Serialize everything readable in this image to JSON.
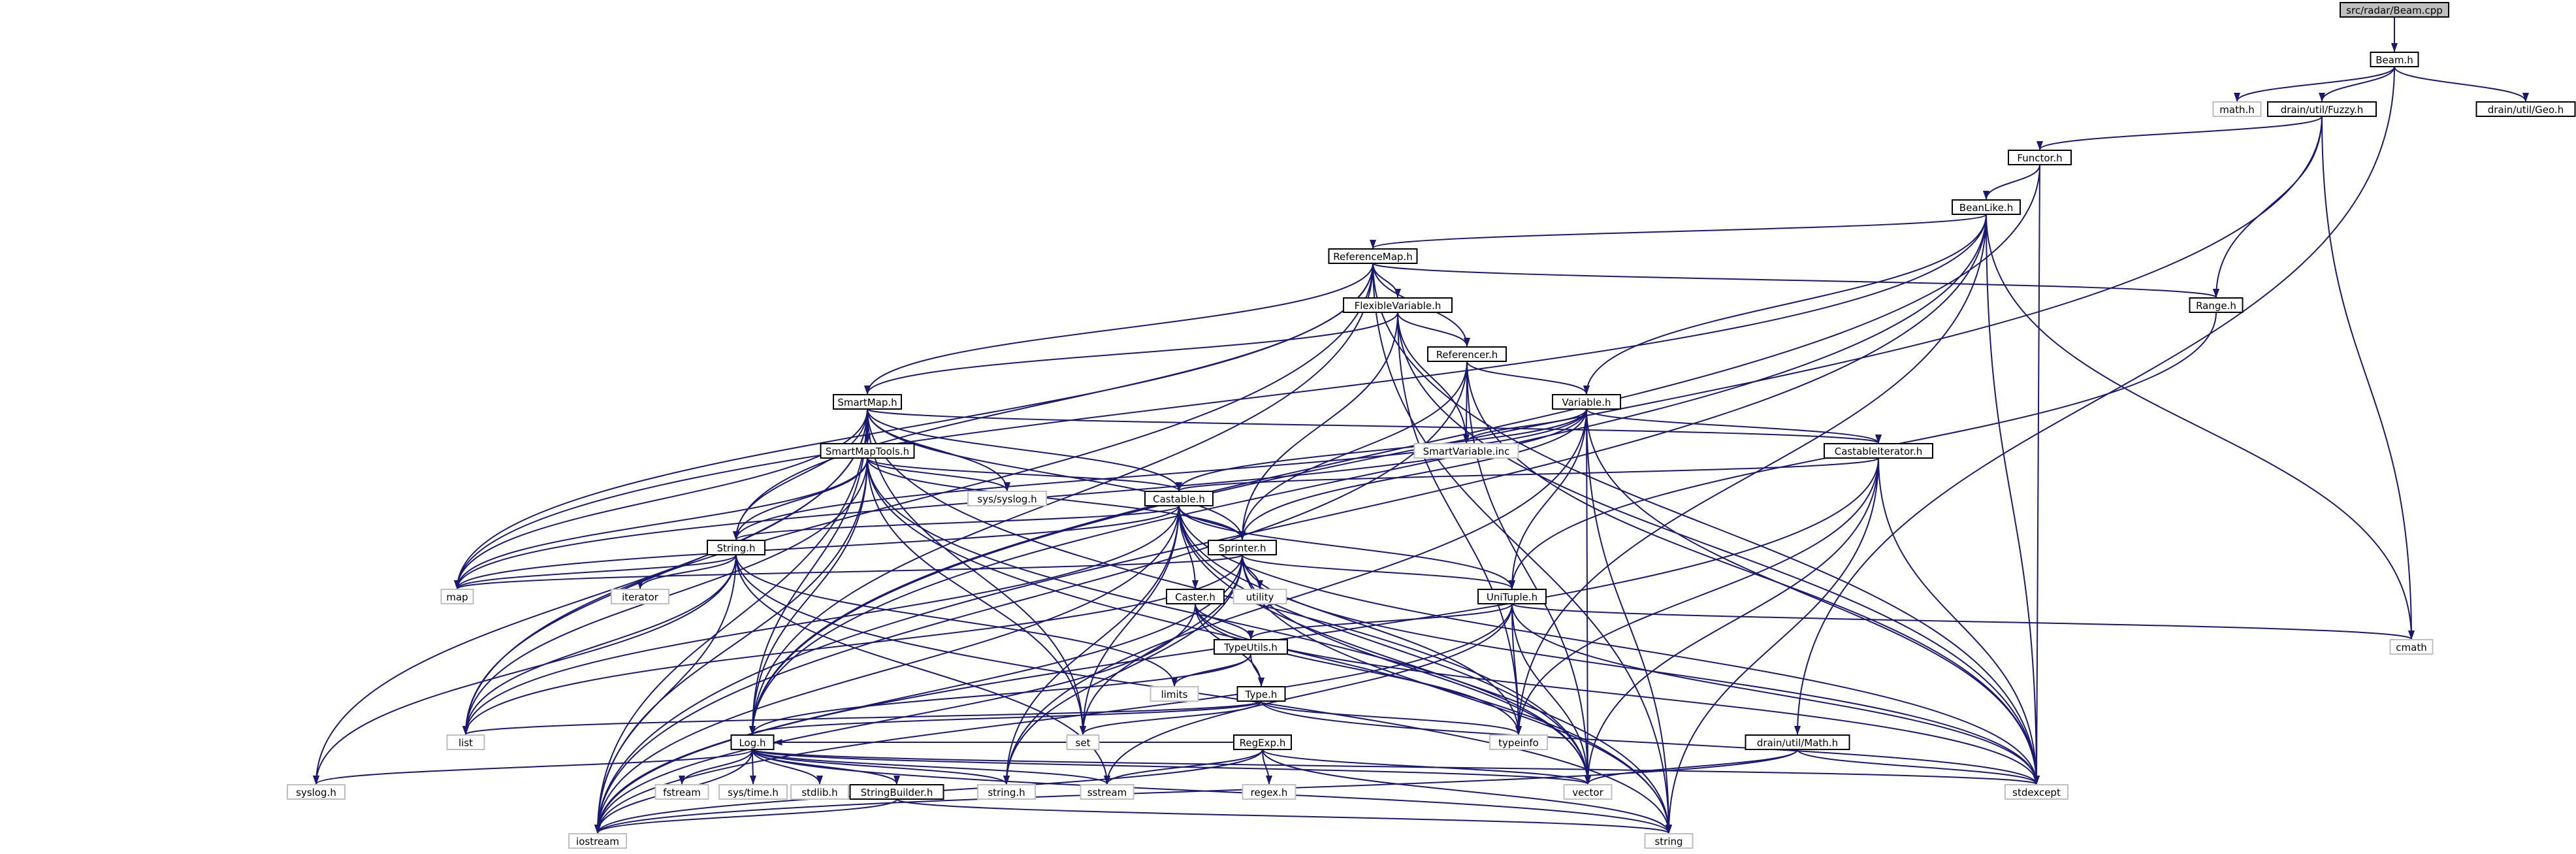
{
  "diagram": {
    "title": "src/radar/Beam.cpp",
    "colors": {
      "edge": "#191970",
      "node_border": "#000000",
      "root_fill": "#bfbfbf",
      "external_border": "#bfbfbf"
    },
    "nodes": [
      {
        "id": "beam_cpp",
        "label": "src/radar/Beam.cpp",
        "kind": "root"
      },
      {
        "id": "beam_h",
        "label": "Beam.h",
        "kind": "header"
      },
      {
        "id": "math_h",
        "label": "math.h",
        "kind": "external"
      },
      {
        "id": "fuzzy_h",
        "label": "drain/util/Fuzzy.h",
        "kind": "header"
      },
      {
        "id": "geo_h",
        "label": "drain/util/Geo.h",
        "kind": "header"
      },
      {
        "id": "functor_h",
        "label": "Functor.h",
        "kind": "header"
      },
      {
        "id": "beanlike_h",
        "label": "BeanLike.h",
        "kind": "header"
      },
      {
        "id": "refmap_h",
        "label": "ReferenceMap.h",
        "kind": "header"
      },
      {
        "id": "range_h",
        "label": "Range.h",
        "kind": "header"
      },
      {
        "id": "flexvar_h",
        "label": "FlexibleVariable.h",
        "kind": "header"
      },
      {
        "id": "referencer_h",
        "label": "Referencer.h",
        "kind": "header"
      },
      {
        "id": "smartmap_h",
        "label": "SmartMap.h",
        "kind": "header"
      },
      {
        "id": "variable_h",
        "label": "Variable.h",
        "kind": "header"
      },
      {
        "id": "smartvar_inc",
        "label": "SmartVariable.inc",
        "kind": "external"
      },
      {
        "id": "castit_h",
        "label": "CastableIterator.h",
        "kind": "header"
      },
      {
        "id": "smaptools_h",
        "label": "SmartMapTools.h",
        "kind": "header"
      },
      {
        "id": "syslog_sys",
        "label": "sys/syslog.h",
        "kind": "external"
      },
      {
        "id": "castable_h",
        "label": "Castable.h",
        "kind": "header"
      },
      {
        "id": "string_h",
        "label": "String.h",
        "kind": "header"
      },
      {
        "id": "sprinter_h",
        "label": "Sprinter.h",
        "kind": "header"
      },
      {
        "id": "map",
        "label": "map",
        "kind": "external"
      },
      {
        "id": "iterator",
        "label": "iterator",
        "kind": "external"
      },
      {
        "id": "utility",
        "label": "utility",
        "kind": "external"
      },
      {
        "id": "caster_h",
        "label": "Caster.h",
        "kind": "header"
      },
      {
        "id": "unituple_h",
        "label": "UniTuple.h",
        "kind": "header"
      },
      {
        "id": "cmath",
        "label": "cmath",
        "kind": "external"
      },
      {
        "id": "typeutils_h",
        "label": "TypeUtils.h",
        "kind": "header"
      },
      {
        "id": "limits",
        "label": "limits",
        "kind": "external"
      },
      {
        "id": "type_h",
        "label": "Type.h",
        "kind": "header"
      },
      {
        "id": "list",
        "label": "list",
        "kind": "external"
      },
      {
        "id": "set",
        "label": "set",
        "kind": "external"
      },
      {
        "id": "typeinfo",
        "label": "typeinfo",
        "kind": "external"
      },
      {
        "id": "log_h",
        "label": "Log.h",
        "kind": "header"
      },
      {
        "id": "regexp_h",
        "label": "RegExp.h",
        "kind": "header"
      },
      {
        "id": "dmath_h",
        "label": "drain/util/Math.h",
        "kind": "header"
      },
      {
        "id": "syslog_h",
        "label": "syslog.h",
        "kind": "external"
      },
      {
        "id": "fstream",
        "label": "fstream",
        "kind": "external"
      },
      {
        "id": "systime_h",
        "label": "sys/time.h",
        "kind": "external"
      },
      {
        "id": "stdlib_h",
        "label": "stdlib.h",
        "kind": "external"
      },
      {
        "id": "strbuilder_h",
        "label": "StringBuilder.h",
        "kind": "header"
      },
      {
        "id": "cstring_h",
        "label": "string.h",
        "kind": "external"
      },
      {
        "id": "sstream",
        "label": "sstream",
        "kind": "external"
      },
      {
        "id": "regex_h",
        "label": "regex.h",
        "kind": "external"
      },
      {
        "id": "vector",
        "label": "vector",
        "kind": "external"
      },
      {
        "id": "stdexcept",
        "label": "stdexcept",
        "kind": "external"
      },
      {
        "id": "iostream",
        "label": "iostream",
        "kind": "external"
      },
      {
        "id": "string",
        "label": "string",
        "kind": "external"
      }
    ],
    "edges": [
      [
        "beam_cpp",
        "beam_h"
      ],
      [
        "beam_h",
        "math_h"
      ],
      [
        "beam_h",
        "fuzzy_h"
      ],
      [
        "beam_h",
        "geo_h"
      ],
      [
        "beam_h",
        "dmath_h"
      ],
      [
        "fuzzy_h",
        "functor_h"
      ],
      [
        "fuzzy_h",
        "range_h"
      ],
      [
        "fuzzy_h",
        "cmath"
      ],
      [
        "fuzzy_h",
        "log_h"
      ],
      [
        "functor_h",
        "beanlike_h"
      ],
      [
        "functor_h",
        "stdexcept"
      ],
      [
        "functor_h",
        "log_h"
      ],
      [
        "beanlike_h",
        "refmap_h"
      ],
      [
        "beanlike_h",
        "variable_h"
      ],
      [
        "beanlike_h",
        "cmath"
      ],
      [
        "beanlike_h",
        "stdexcept"
      ],
      [
        "beanlike_h",
        "iostream"
      ],
      [
        "beanlike_h",
        "log_h"
      ],
      [
        "beanlike_h",
        "map"
      ],
      [
        "beanlike_h",
        "typeinfo"
      ],
      [
        "refmap_h",
        "flexvar_h"
      ],
      [
        "refmap_h",
        "referencer_h"
      ],
      [
        "refmap_h",
        "range_h"
      ],
      [
        "refmap_h",
        "smartmap_h"
      ],
      [
        "refmap_h",
        "string_h"
      ],
      [
        "refmap_h",
        "log_h"
      ],
      [
        "refmap_h",
        "map"
      ],
      [
        "refmap_h",
        "list"
      ],
      [
        "refmap_h",
        "stdexcept"
      ],
      [
        "refmap_h",
        "string"
      ],
      [
        "range_h",
        "unituple_h"
      ],
      [
        "flexvar_h",
        "referencer_h"
      ],
      [
        "flexvar_h",
        "smartvar_inc"
      ],
      [
        "flexvar_h",
        "smartmap_h"
      ],
      [
        "flexvar_h",
        "sprinter_h"
      ],
      [
        "flexvar_h",
        "typeinfo"
      ],
      [
        "flexvar_h",
        "stdexcept"
      ],
      [
        "referencer_h",
        "variable_h"
      ],
      [
        "referencer_h",
        "smartvar_inc"
      ],
      [
        "referencer_h",
        "sprinter_h"
      ],
      [
        "referencer_h",
        "stdexcept"
      ],
      [
        "referencer_h",
        "vector"
      ],
      [
        "referencer_h",
        "iostream"
      ],
      [
        "smartmap_h",
        "smaptools_h"
      ],
      [
        "smartmap_h",
        "castable_h"
      ],
      [
        "smartmap_h",
        "string_h"
      ],
      [
        "smartmap_h",
        "sprinter_h"
      ],
      [
        "smartmap_h",
        "syslog_sys"
      ],
      [
        "smartmap_h",
        "syslog_h"
      ],
      [
        "smartmap_h",
        "map"
      ],
      [
        "smartmap_h",
        "set"
      ],
      [
        "smartmap_h",
        "list"
      ],
      [
        "smartmap_h",
        "iostream"
      ],
      [
        "smartmap_h",
        "log_h"
      ],
      [
        "smartmap_h",
        "vector"
      ],
      [
        "smartmap_h",
        "castit_h"
      ],
      [
        "variable_h",
        "castable_h"
      ],
      [
        "variable_h",
        "castit_h"
      ],
      [
        "variable_h",
        "smartvar_inc"
      ],
      [
        "variable_h",
        "string_h"
      ],
      [
        "variable_h",
        "sprinter_h"
      ],
      [
        "variable_h",
        "unituple_h"
      ],
      [
        "variable_h",
        "map"
      ],
      [
        "variable_h",
        "vector"
      ],
      [
        "variable_h",
        "stdexcept"
      ],
      [
        "variable_h",
        "string"
      ],
      [
        "variable_h",
        "cstring_h"
      ],
      [
        "castit_h",
        "castable_h"
      ],
      [
        "castit_h",
        "typeinfo"
      ],
      [
        "castit_h",
        "stdexcept"
      ],
      [
        "castit_h",
        "vector"
      ],
      [
        "castit_h",
        "iostream"
      ],
      [
        "castit_h",
        "string"
      ],
      [
        "smaptools_h",
        "castable_h"
      ],
      [
        "smaptools_h",
        "string_h"
      ],
      [
        "smaptools_h",
        "sprinter_h"
      ],
      [
        "smaptools_h",
        "syslog_sys"
      ],
      [
        "smaptools_h",
        "map"
      ],
      [
        "smaptools_h",
        "set"
      ],
      [
        "smaptools_h",
        "list"
      ],
      [
        "smaptools_h",
        "log_h"
      ],
      [
        "smaptools_h",
        "iostream"
      ],
      [
        "smaptools_h",
        "vector"
      ],
      [
        "smaptools_h",
        "string"
      ],
      [
        "castable_h",
        "caster_h"
      ],
      [
        "castable_h",
        "string_h"
      ],
      [
        "castable_h",
        "sprinter_h"
      ],
      [
        "castable_h",
        "unituple_h"
      ],
      [
        "castable_h",
        "map"
      ],
      [
        "castable_h",
        "set"
      ],
      [
        "castable_h",
        "list"
      ],
      [
        "castable_h",
        "typeinfo"
      ],
      [
        "castable_h",
        "iostream"
      ],
      [
        "castable_h",
        "vector"
      ],
      [
        "castable_h",
        "stdexcept"
      ],
      [
        "castable_h",
        "string"
      ],
      [
        "castable_h",
        "cstring_h"
      ],
      [
        "string_h",
        "map"
      ],
      [
        "string_h",
        "iterator"
      ],
      [
        "string_h",
        "limits"
      ],
      [
        "string_h",
        "list"
      ],
      [
        "string_h",
        "syslog_h"
      ],
      [
        "string_h",
        "iostream"
      ],
      [
        "string_h",
        "sstream"
      ],
      [
        "string_h",
        "string"
      ],
      [
        "sprinter_h",
        "map"
      ],
      [
        "sprinter_h",
        "utility"
      ],
      [
        "sprinter_h",
        "unituple_h"
      ],
      [
        "sprinter_h",
        "set"
      ],
      [
        "sprinter_h",
        "list"
      ],
      [
        "sprinter_h",
        "vector"
      ],
      [
        "sprinter_h",
        "stdexcept"
      ],
      [
        "sprinter_h",
        "cstring_h"
      ],
      [
        "sprinter_h",
        "string"
      ],
      [
        "sprinter_h",
        "iostream"
      ],
      [
        "caster_h",
        "typeutils_h"
      ],
      [
        "caster_h",
        "type_h"
      ],
      [
        "caster_h",
        "typeinfo"
      ],
      [
        "caster_h",
        "stdexcept"
      ],
      [
        "caster_h",
        "iostream"
      ],
      [
        "unituple_h",
        "typeutils_h"
      ],
      [
        "unituple_h",
        "cmath"
      ],
      [
        "unituple_h",
        "typeinfo"
      ],
      [
        "unituple_h",
        "stdexcept"
      ],
      [
        "unituple_h",
        "sstream"
      ],
      [
        "unituple_h",
        "vector"
      ],
      [
        "unituple_h",
        "iostream"
      ],
      [
        "typeutils_h",
        "type_h"
      ],
      [
        "typeutils_h",
        "limits"
      ],
      [
        "typeutils_h",
        "log_h"
      ],
      [
        "type_h",
        "list"
      ],
      [
        "type_h",
        "set"
      ],
      [
        "type_h",
        "typeinfo"
      ],
      [
        "type_h",
        "log_h"
      ],
      [
        "type_h",
        "stdexcept"
      ],
      [
        "log_h",
        "syslog_h"
      ],
      [
        "log_h",
        "fstream"
      ],
      [
        "log_h",
        "systime_h"
      ],
      [
        "log_h",
        "stdlib_h"
      ],
      [
        "log_h",
        "strbuilder_h"
      ],
      [
        "log_h",
        "cstring_h"
      ],
      [
        "log_h",
        "sstream"
      ],
      [
        "log_h",
        "vector"
      ],
      [
        "log_h",
        "stdexcept"
      ],
      [
        "log_h",
        "iostream"
      ],
      [
        "log_h",
        "string"
      ],
      [
        "strbuilder_h",
        "iostream"
      ],
      [
        "strbuilder_h",
        "string"
      ],
      [
        "regexp_h",
        "sstream"
      ],
      [
        "regexp_h",
        "regex_h"
      ],
      [
        "regexp_h",
        "vector"
      ],
      [
        "regexp_h",
        "iostream"
      ],
      [
        "regexp_h",
        "string"
      ],
      [
        "regexp_h",
        "log_h"
      ],
      [
        "dmath_h",
        "vector"
      ],
      [
        "dmath_h",
        "stdexcept"
      ],
      [
        "dmath_h",
        "iostream"
      ]
    ]
  }
}
